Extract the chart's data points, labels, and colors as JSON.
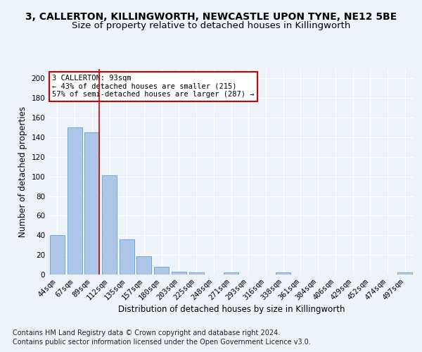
{
  "title_line1": "3, CALLERTON, KILLINGWORTH, NEWCASTLE UPON TYNE, NE12 5BE",
  "title_line2": "Size of property relative to detached houses in Killingworth",
  "xlabel": "Distribution of detached houses by size in Killingworth",
  "ylabel": "Number of detached properties",
  "categories": [
    "44sqm",
    "67sqm",
    "89sqm",
    "112sqm",
    "135sqm",
    "157sqm",
    "180sqm",
    "203sqm",
    "225sqm",
    "248sqm",
    "271sqm",
    "293sqm",
    "316sqm",
    "338sqm",
    "361sqm",
    "384sqm",
    "406sqm",
    "429sqm",
    "452sqm",
    "474sqm",
    "497sqm"
  ],
  "values": [
    40,
    150,
    145,
    101,
    36,
    19,
    8,
    3,
    2,
    0,
    2,
    0,
    0,
    2,
    0,
    0,
    0,
    0,
    0,
    0,
    2
  ],
  "bar_color": "#aec6e8",
  "bar_edge_color": "#5a9fd4",
  "ylim": [
    0,
    210
  ],
  "yticks": [
    0,
    20,
    40,
    60,
    80,
    100,
    120,
    140,
    160,
    180,
    200
  ],
  "vline_color": "#cc0000",
  "vline_pos": 2.43,
  "annotation_text": "3 CALLERTON: 93sqm\n← 43% of detached houses are smaller (215)\n57% of semi-detached houses are larger (287) →",
  "annotation_box_color": "#ffffff",
  "annotation_box_edge": "#cc0000",
  "footer_line1": "Contains HM Land Registry data © Crown copyright and database right 2024.",
  "footer_line2": "Contains public sector information licensed under the Open Government Licence v3.0.",
  "bg_color": "#eef2f9",
  "plot_bg_color": "#eef2f9",
  "grid_color": "#ffffff",
  "title_fontsize": 10,
  "subtitle_fontsize": 9.5,
  "axis_label_fontsize": 8.5,
  "tick_fontsize": 7.5,
  "footer_fontsize": 7
}
